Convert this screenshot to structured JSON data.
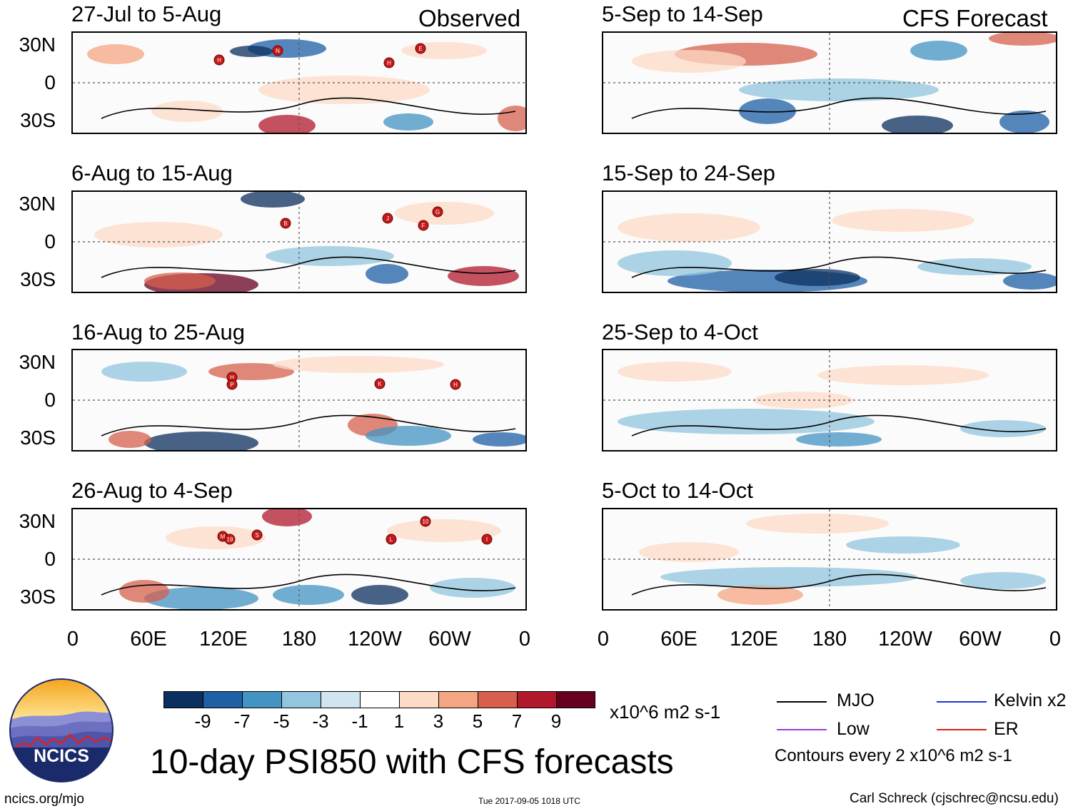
{
  "header": {
    "observed_label": "Observed",
    "forecast_label": "CFS Forecast"
  },
  "panels": {
    "left": [
      {
        "title": "27-Jul to 5-Aug",
        "storms": [
          "H",
          "N",
          "E",
          "H"
        ]
      },
      {
        "title": "6-Aug to 15-Aug",
        "storms": [
          "B",
          "J",
          "G",
          "F"
        ]
      },
      {
        "title": "16-Aug to 25-Aug",
        "storms": [
          "H",
          "P",
          "K",
          "H"
        ]
      },
      {
        "title": "26-Aug to 4-Sep",
        "storms": [
          "M",
          "19",
          "S",
          "L",
          "10",
          "I"
        ]
      }
    ],
    "right": [
      {
        "title": "5-Sep to 14-Sep"
      },
      {
        "title": "15-Sep to 24-Sep"
      },
      {
        "title": "25-Sep to 4-Oct"
      },
      {
        "title": "5-Oct to 14-Oct"
      }
    ]
  },
  "axes": {
    "y_labels": [
      "30N",
      "0",
      "30S"
    ],
    "x_labels": [
      "0",
      "60E",
      "120E",
      "180",
      "120W",
      "60W",
      "0"
    ]
  },
  "chart_data": {
    "type": "heatmap",
    "title": "10-day PSI850 with CFS forecasts",
    "variable": "PSI850 anomaly",
    "units": "x10^6 m2 s-1",
    "longitude_ticks": [
      "0",
      "60E",
      "120E",
      "180",
      "120W",
      "60W",
      "0"
    ],
    "latitude_ticks": [
      "30N",
      "0",
      "30S"
    ],
    "lat_range": [
      -40,
      40
    ],
    "color_levels": [
      -9,
      -7,
      -5,
      -3,
      -1,
      1,
      3,
      5,
      7,
      9
    ],
    "colors": [
      "#0b2f5e",
      "#1e5fa6",
      "#4393c3",
      "#92c5de",
      "#d1e5f0",
      "#ffffff",
      "#fddbc7",
      "#f4a582",
      "#d6604d",
      "#b2182b",
      "#67001f"
    ],
    "contour_interval": 2,
    "periods_observed": [
      "27-Jul to 5-Aug",
      "6-Aug to 15-Aug",
      "16-Aug to 25-Aug",
      "26-Aug to 4-Sep"
    ],
    "periods_forecast": [
      "5-Sep to 14-Sep",
      "15-Sep to 24-Sep",
      "25-Sep to 4-Oct",
      "5-Oct to 14-Oct"
    ]
  },
  "colorbar": {
    "ticks": [
      "-9",
      "-7",
      "-5",
      "-3",
      "-1",
      "1",
      "3",
      "5",
      "7",
      "9"
    ],
    "units": "x10^6 m2 s-1"
  },
  "legend": {
    "items": [
      {
        "label": "MJO",
        "color": "#000000"
      },
      {
        "label": "Kelvin x2",
        "color": "#1f2fd6"
      },
      {
        "label": "Low",
        "color": "#9b3fd6"
      },
      {
        "label": "ER",
        "color": "#e0201a"
      }
    ],
    "contour_note": "Contours every 2 x10^6 m2 s-1"
  },
  "logo": {
    "text": "NCICS"
  },
  "footer": {
    "url": "ncics.org/mjo",
    "timestamp": "Tue 2017-09-05 1018 UTC",
    "credit": "Carl Schreck (cjschrec@ncsu.edu)"
  }
}
